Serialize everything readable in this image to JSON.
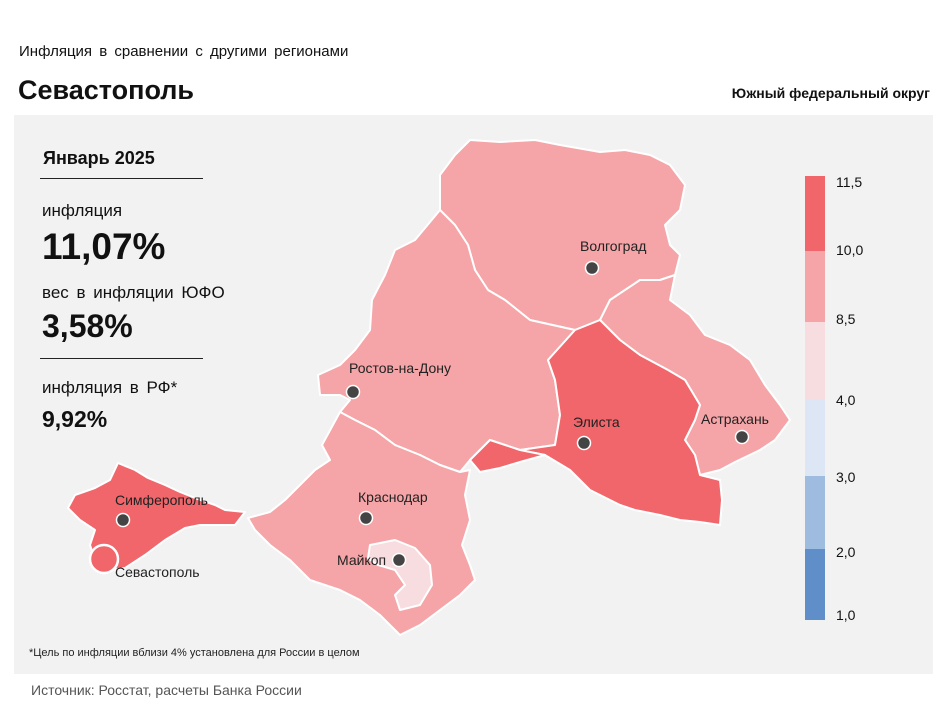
{
  "header": {
    "subtitle": "Инфляция в сравнении с другими регионами",
    "title": "Севастополь",
    "district": "Южный федеральный округ"
  },
  "stats": {
    "period": "Январь 2025",
    "inflation_label": "инфляция",
    "inflation_value": "11,07%",
    "weight_label": "вес в инфляции ЮФО",
    "weight_value": "3,58%",
    "rf_label": "инфляция в РФ*",
    "rf_value": "9,92%"
  },
  "cities": {
    "volgograd": "Волгоград",
    "rostov": "Ростов-на-Дону",
    "elista": "Элиста",
    "astrakhan": "Астрахань",
    "simferopol": "Симферополь",
    "krasnodar": "Краснодар",
    "maykop": "Майкоп",
    "sevastopol": "Севастополь"
  },
  "legend": {
    "labels": [
      "11,5",
      "10,0",
      "8,5",
      "4,0",
      "3,0",
      "2,0",
      "1,0"
    ],
    "colors": [
      "#f0666b",
      "#f5a5a7",
      "#f8dde0",
      "#dde6f4",
      "#9ebbe0",
      "#5f8ec9"
    ]
  },
  "region_colors": {
    "rostov": "#f5a5a7",
    "volgograd": "#f5a5a7",
    "astrakhan": "#f5a5a7",
    "kalmykia": "#f0666b",
    "krasnodar": "#f5a5a7",
    "adygea": "#f8dde0",
    "crimea": "#f0666b",
    "sevastopol": "#f0666b"
  },
  "footnote": "*Цель по инфляции вблизи 4% установлена для России в целом",
  "source": "Источник: Росстат, расчеты Банка России"
}
